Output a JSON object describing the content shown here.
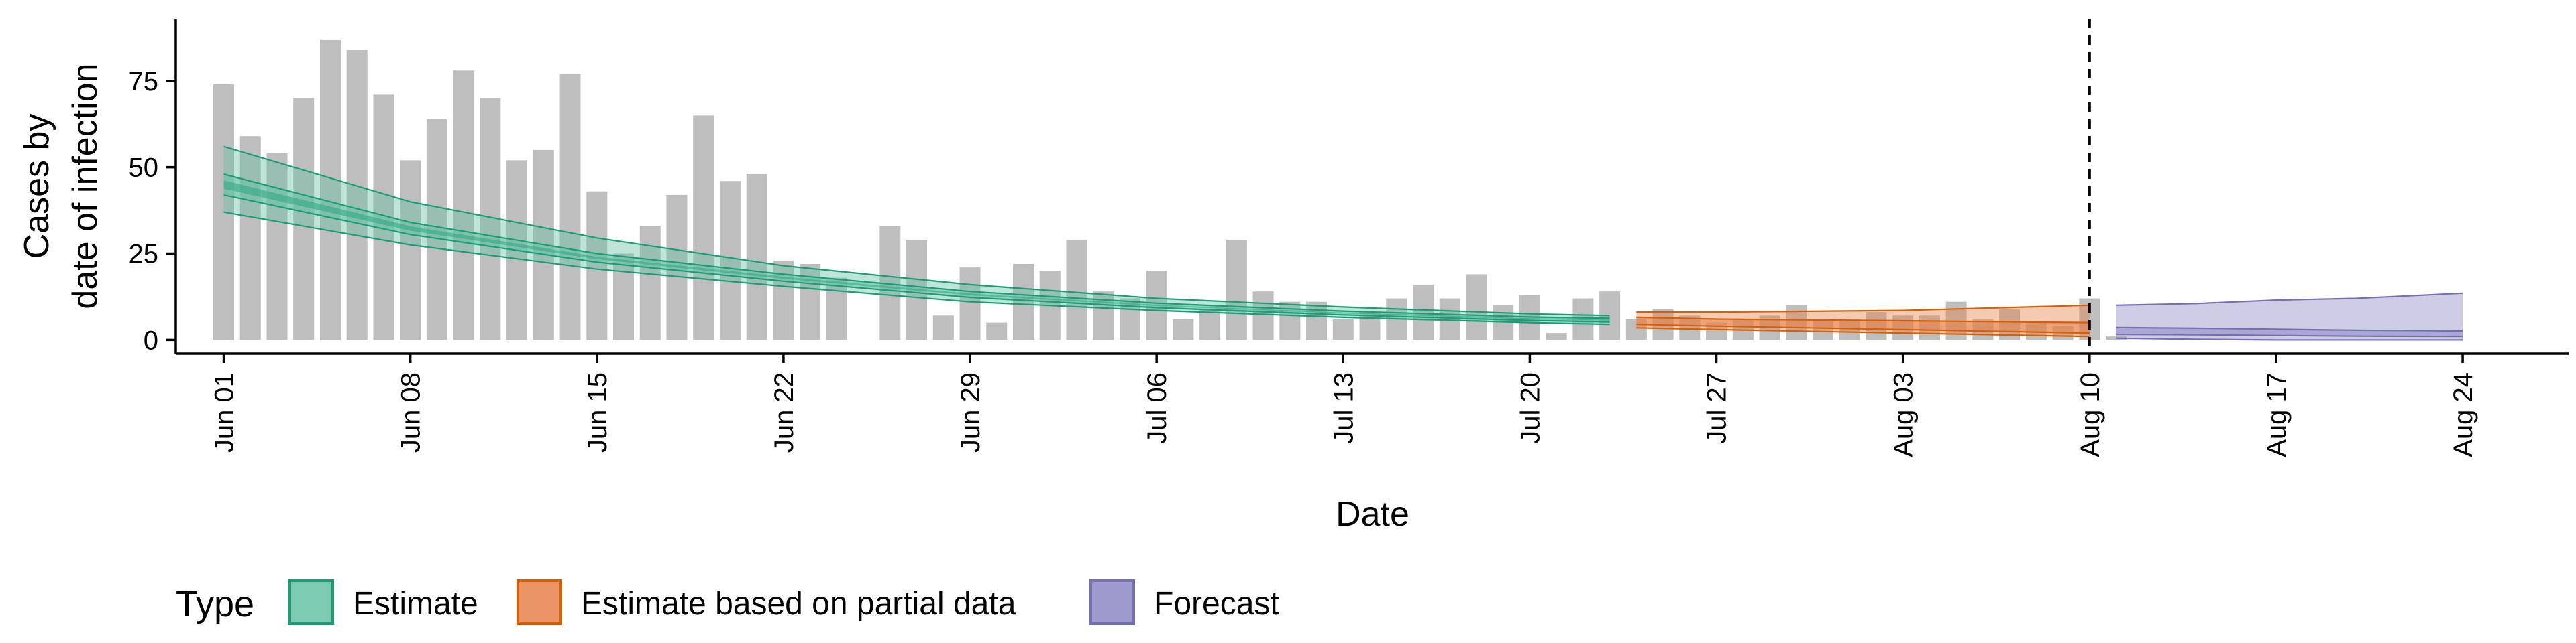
{
  "chart_data": {
    "type": "bar",
    "xlabel": "Date",
    "ylabel_lines": [
      "Cases by",
      "date of infection"
    ],
    "yticks": [
      0,
      25,
      50,
      75
    ],
    "ylim": [
      -4,
      93
    ],
    "xlim_days": [
      -1.8,
      88
    ],
    "x_tick_labels": [
      "Jun 01",
      "Jun 08",
      "Jun 15",
      "Jun 22",
      "Jun 29",
      "Jul 06",
      "Jul 13",
      "Jul 20",
      "Jul 27",
      "Aug 03",
      "Aug 10",
      "Aug 17",
      "Aug 24"
    ],
    "x_tick_days": [
      0,
      7,
      14,
      21,
      28,
      35,
      42,
      49,
      56,
      63,
      70,
      77,
      84
    ],
    "cutoff_date": "Aug 10",
    "bars": {
      "color": "#bebebe",
      "start_date": "Jun 01",
      "values": [
        74,
        59,
        54,
        70,
        87,
        84,
        71,
        52,
        64,
        78,
        70,
        52,
        55,
        77,
        43,
        25,
        33,
        42,
        65,
        46,
        48,
        23,
        22,
        18,
        null,
        33,
        29,
        7,
        21,
        5,
        22,
        20,
        29,
        14,
        12,
        20,
        6,
        9,
        29,
        14,
        11,
        11,
        6,
        8,
        12,
        16,
        12,
        19,
        10,
        13,
        2,
        12,
        14,
        6,
        9,
        7,
        5,
        6,
        7,
        10,
        6,
        6,
        8,
        7,
        7,
        11,
        6,
        9,
        5,
        4,
        12,
        1
      ]
    },
    "series": [
      {
        "name": "Estimate",
        "color": "#1b9e77",
        "fill": "#66c2a5",
        "x_days": [
          0,
          7,
          14,
          21,
          28,
          35,
          42,
          49,
          52
        ],
        "outer_lower": [
          37,
          27.5,
          20.5,
          15.5,
          11,
          8.5,
          6.5,
          5,
          4.5
        ],
        "outer_upper": [
          56,
          40,
          29.5,
          21.5,
          16,
          12,
          9.5,
          7.5,
          7
        ],
        "inner_lower": [
          42,
          30.5,
          22.5,
          17,
          12.3,
          9.3,
          7.2,
          5.6,
          5.2
        ],
        "inner_upper": [
          48,
          34,
          25,
          19,
          14,
          10.6,
          8.3,
          6.6,
          6.2
        ],
        "mid_lower": [
          43.8,
          31.6,
          23.4,
          17.7,
          12.9,
          9.8,
          7.6,
          5.95,
          5.55
        ],
        "mid_upper": [
          46.2,
          32.9,
          24.1,
          18.3,
          13.4,
          10.1,
          7.9,
          6.25,
          5.85
        ]
      },
      {
        "name": "Estimate based on partial data",
        "color": "#d95f02",
        "fill": "#e6814a",
        "x_days": [
          53,
          56,
          63,
          70
        ],
        "outer_lower": [
          3.5,
          3,
          2,
          1
        ],
        "outer_upper": [
          8,
          8,
          8.5,
          10
        ],
        "inner_lower": [
          4.5,
          4,
          3,
          2
        ],
        "inner_upper": [
          6.5,
          6,
          5.5,
          5
        ]
      },
      {
        "name": "Forecast",
        "color": "#7570b3",
        "fill": "#8c88c4",
        "x_days": [
          71,
          74,
          77,
          80,
          84
        ],
        "outer_lower": [
          0.5,
          0.2,
          0,
          0,
          0
        ],
        "outer_upper": [
          10,
          10.5,
          11.5,
          12,
          13.5
        ],
        "inner_lower": [
          1.6,
          1.5,
          1.3,
          1.1,
          1
        ],
        "inner_upper": [
          3.6,
          3.4,
          3.1,
          2.8,
          2.6
        ]
      }
    ],
    "legend": {
      "title": "Type",
      "position": "bottom",
      "entries": [
        "Estimate",
        "Estimate based on partial data",
        "Forecast"
      ]
    }
  }
}
